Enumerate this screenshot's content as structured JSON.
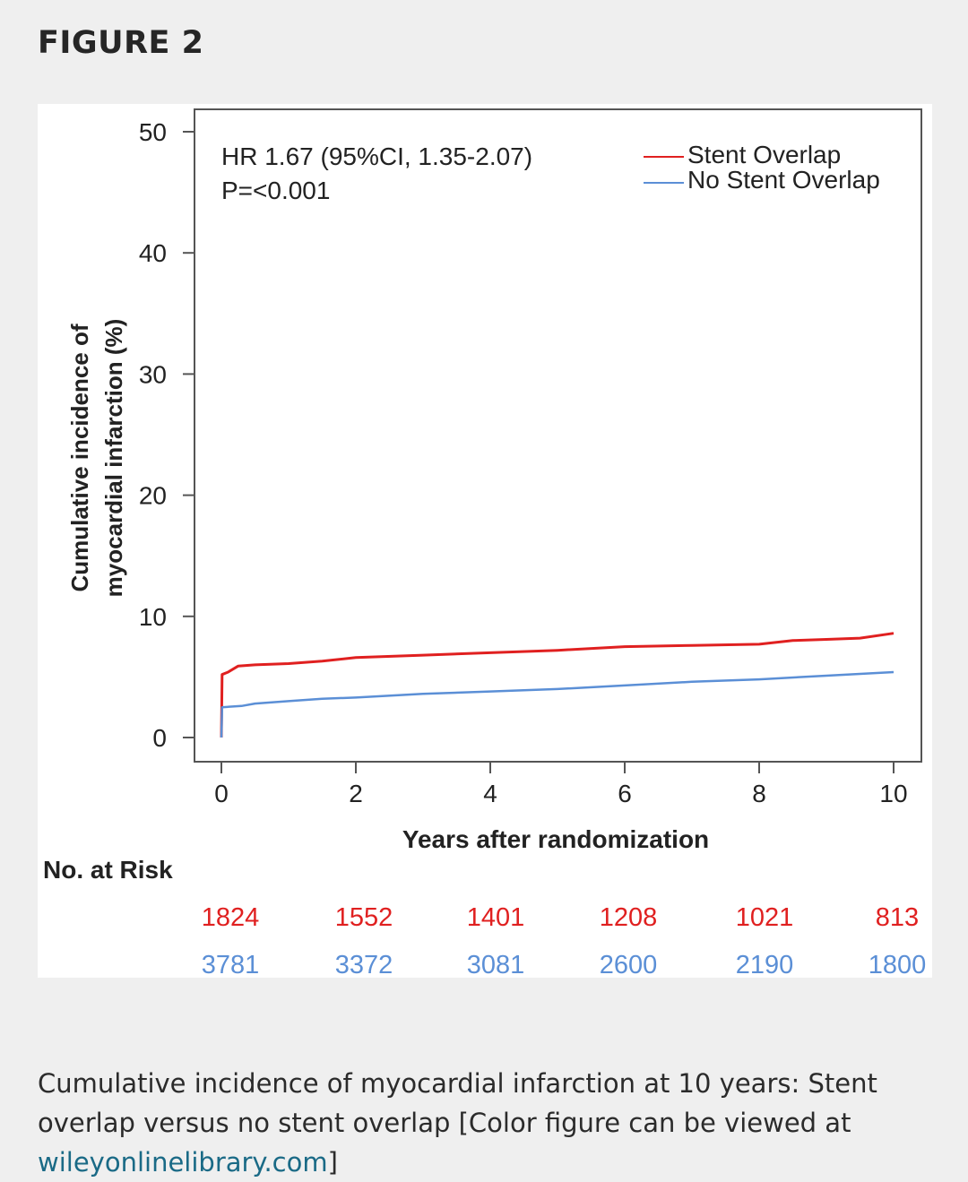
{
  "heading": "FIGURE 2",
  "chart_data": {
    "type": "line",
    "annotation": [
      "HR 1.67 (95%CI, 1.35-2.07)",
      "P=<0.001"
    ],
    "xlabel": "Years after randomization",
    "ylabel": [
      "Cumulative incidence of",
      "myocardial infarction (%)"
    ],
    "xlim": [
      0,
      10
    ],
    "ylim": [
      0,
      50
    ],
    "xticks": [
      0,
      2,
      4,
      6,
      8,
      10
    ],
    "yticks": [
      0,
      10,
      20,
      30,
      40,
      50
    ],
    "legend_position": "top-right",
    "grid": false,
    "series": [
      {
        "name": "Stent Overlap",
        "color": "#e02020",
        "points": [
          [
            0,
            0
          ],
          [
            0.01,
            5.2
          ],
          [
            0.1,
            5.4
          ],
          [
            0.25,
            5.9
          ],
          [
            0.5,
            6.0
          ],
          [
            1,
            6.1
          ],
          [
            1.5,
            6.3
          ],
          [
            2,
            6.6
          ],
          [
            3,
            6.8
          ],
          [
            4,
            7.0
          ],
          [
            5,
            7.2
          ],
          [
            6,
            7.5
          ],
          [
            7,
            7.6
          ],
          [
            8,
            7.7
          ],
          [
            8.5,
            8.0
          ],
          [
            9,
            8.1
          ],
          [
            9.5,
            8.2
          ],
          [
            10,
            8.6
          ]
        ]
      },
      {
        "name": "No Stent Overlap",
        "color": "#5b8fd6",
        "points": [
          [
            0,
            0
          ],
          [
            0.01,
            2.5
          ],
          [
            0.3,
            2.6
          ],
          [
            0.5,
            2.8
          ],
          [
            1,
            3.0
          ],
          [
            1.5,
            3.2
          ],
          [
            2,
            3.3
          ],
          [
            3,
            3.6
          ],
          [
            4,
            3.8
          ],
          [
            5,
            4.0
          ],
          [
            6,
            4.3
          ],
          [
            7,
            4.6
          ],
          [
            8,
            4.8
          ],
          [
            9,
            5.1
          ],
          [
            10,
            5.4
          ]
        ]
      }
    ],
    "risk_table": {
      "title": "No. at Risk",
      "rows": [
        {
          "color": "#e02020",
          "values": [
            "1824",
            "1552",
            "1401",
            "1208",
            "1021",
            "813"
          ]
        },
        {
          "color": "#5b8fd6",
          "values": [
            "3781",
            "3372",
            "3081",
            "2600",
            "2190",
            "1800"
          ]
        }
      ]
    }
  },
  "caption": {
    "text": "Cumulative incidence of myocardial infarction at 10 years: Stent overlap versus no stent overlap [Color figure can be viewed at ",
    "link": "wileyonlinelibrary.com",
    "end": "]"
  }
}
